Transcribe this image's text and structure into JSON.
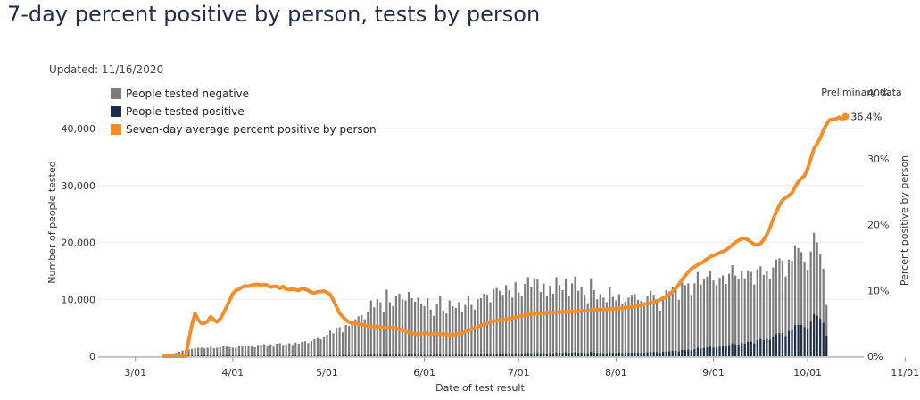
{
  "page": {
    "title": "7-day percent positive by person, tests by person",
    "updated": "Updated: 11/16/2020"
  },
  "colors": {
    "negative": "#7b7b7b",
    "positive": "#1f2d4b",
    "line": "#f28e2b",
    "preliminary": "#d6d6d6"
  },
  "chart_data": {
    "type": "bar",
    "title": "",
    "xlabel": "Date of test result",
    "ylabel": "Number of people tested",
    "y2label": "Percent positive by person",
    "x_ticks": [
      "3/01",
      "4/01",
      "5/01",
      "6/01",
      "7/01",
      "8/01",
      "9/01",
      "10/01",
      "11/01"
    ],
    "y_ticks": [
      "0",
      "10,000",
      "20,000",
      "30,000",
      "40,000"
    ],
    "y2_ticks": [
      "0%",
      "10%",
      "20%",
      "30%",
      "40%"
    ],
    "ylim": [
      0,
      45000
    ],
    "y2lim": [
      0,
      40
    ],
    "legend_placement": "top-left",
    "grid": "horizontal",
    "preliminary_label": "Preliminary data",
    "preliminary_start": "11/01",
    "last_value_label": "36.4%",
    "legend": [
      "People tested negative",
      "People tested positive",
      "Seven-day average percent positive by person"
    ],
    "date_start": "2020-03-01",
    "total_tested": [
      0,
      0,
      0,
      0,
      0,
      0,
      0,
      0,
      0,
      50,
      150,
      250,
      400,
      600,
      800,
      1000,
      1100,
      1200,
      1300,
      1400,
      1500,
      1500,
      1400,
      1500,
      1600,
      1400,
      1500,
      1600,
      1800,
      1700,
      1600,
      1500,
      1500,
      1900,
      1800,
      1700,
      1900,
      1700,
      1600,
      2000,
      2000,
      2100,
      1900,
      2100,
      1700,
      2200,
      2300,
      2000,
      2100,
      2300,
      2000,
      2400,
      2200,
      2500,
      2600,
      2300,
      2700,
      3000,
      3200,
      3000,
      3400,
      3800,
      4500,
      4000,
      5000,
      5100,
      4200,
      5500,
      5300,
      6000,
      6500,
      7000,
      7200,
      6500,
      7800,
      9800,
      8600,
      10000,
      9500,
      7800,
      11700,
      9500,
      8800,
      10500,
      11000,
      10000,
      9800,
      11300,
      10200,
      9600,
      10300,
      9200,
      8800,
      10200,
      8200,
      7100,
      9200,
      10500,
      8000,
      7500,
      9800,
      8800,
      8500,
      9500,
      7800,
      9000,
      10500,
      9000,
      8200,
      10000,
      10200,
      11000,
      10800,
      9500,
      11800,
      12000,
      11500,
      10800,
      12500,
      11600,
      10300,
      13000,
      11200,
      10600,
      12700,
      13900,
      12200,
      13700,
      13600,
      11300,
      12800,
      10500,
      12400,
      11000,
      13900,
      12500,
      11600,
      13500,
      10600,
      12800,
      14000,
      11500,
      12200,
      10800,
      9300,
      13700,
      11600,
      10000,
      10900,
      10300,
      9500,
      12200,
      10400,
      9800,
      10900,
      9100,
      9600,
      10300,
      10800,
      10900,
      9900,
      9700,
      8800,
      10500,
      11500,
      10800,
      9500,
      8000,
      10600,
      11600,
      11400,
      12200,
      12100,
      9900,
      13000,
      12500,
      12800,
      10800,
      12800,
      14800,
      12600,
      13500,
      14000,
      15000,
      13300,
      12500,
      13800,
      14200,
      12700,
      14500,
      16000,
      14200,
      13600,
      14900,
      13700,
      15100,
      14800,
      12600,
      15300,
      15800,
      14300,
      15000,
      13500,
      15600,
      17000,
      17200,
      16800,
      14000,
      17000,
      16800,
      19500,
      19000,
      18300,
      16500,
      15200,
      18400,
      21700,
      20000,
      17900,
      15400,
      9000
    ],
    "positive_tested": [
      0,
      0,
      0,
      0,
      0,
      0,
      0,
      0,
      0,
      5,
      10,
      20,
      30,
      40,
      50,
      60,
      70,
      80,
      90,
      100,
      110,
      120,
      120,
      130,
      130,
      120,
      130,
      140,
      150,
      140,
      130,
      120,
      120,
      140,
      130,
      120,
      130,
      110,
      100,
      120,
      110,
      110,
      100,
      100,
      80,
      100,
      100,
      90,
      90,
      100,
      80,
      100,
      90,
      100,
      100,
      90,
      100,
      110,
      120,
      110,
      120,
      140,
      160,
      140,
      170,
      170,
      140,
      180,
      170,
      190,
      200,
      220,
      220,
      190,
      230,
      280,
      240,
      280,
      260,
      210,
      310,
      250,
      230,
      270,
      280,
      250,
      250,
      290,
      260,
      240,
      260,
      230,
      220,
      260,
      210,
      180,
      240,
      280,
      210,
      200,
      260,
      240,
      240,
      270,
      220,
      260,
      310,
      270,
      250,
      310,
      330,
      360,
      360,
      320,
      400,
      420,
      410,
      390,
      460,
      440,
      390,
      500,
      440,
      420,
      510,
      570,
      510,
      580,
      580,
      490,
      560,
      470,
      560,
      510,
      650,
      600,
      560,
      660,
      530,
      640,
      710,
      590,
      630,
      570,
      490,
      730,
      620,
      540,
      590,
      560,
      520,
      670,
      580,
      550,
      620,
      520,
      550,
      600,
      640,
      660,
      610,
      610,
      560,
      690,
      770,
      740,
      660,
      570,
      770,
      860,
      870,
      960,
      980,
      820,
      1110,
      1100,
      1160,
      1010,
      1230,
      1470,
      1290,
      1420,
      1520,
      1680,
      1540,
      1480,
      1690,
      1800,
      1660,
      1970,
      2250,
      2070,
      2040,
      2310,
      2210,
      2500,
      2550,
      2240,
      2820,
      3020,
      2840,
      3080,
      2870,
      3420,
      3880,
      4060,
      4100,
      3530,
      4450,
      4560,
      5480,
      5510,
      5490,
      5130,
      4880,
      6070,
      7400,
      7100,
      6570,
      5850,
      3600
    ],
    "pct_positive_7day": [
      null,
      null,
      null,
      null,
      null,
      null,
      null,
      null,
      null,
      0,
      0,
      0,
      0,
      0,
      0,
      0,
      0,
      2.5,
      4.8,
      6.5,
      5.5,
      5.0,
      5.0,
      5.3,
      6.0,
      5.5,
      5.2,
      5.7,
      6.5,
      7.5,
      8.5,
      9.5,
      10.0,
      10.2,
      10.5,
      10.7,
      10.6,
      10.8,
      10.9,
      10.9,
      10.8,
      10.9,
      10.8,
      10.5,
      10.6,
      10.6,
      10.3,
      10.6,
      10.2,
      10.1,
      10.2,
      10.1,
      10.0,
      10.3,
      10.2,
      10.0,
      9.7,
      9.6,
      9.8,
      9.8,
      9.9,
      9.7,
      9.4,
      8.5,
      7.5,
      6.5,
      6.0,
      5.5,
      5.2,
      5.0,
      5.0,
      4.9,
      4.8,
      4.7,
      4.6,
      4.6,
      4.5,
      4.5,
      4.4,
      4.4,
      4.3,
      4.3,
      4.4,
      4.2,
      4.1,
      4.0,
      3.8,
      3.6,
      3.5,
      3.4,
      3.3,
      3.4,
      3.5,
      3.4,
      3.3,
      3.4,
      3.4,
      3.3,
      3.4,
      3.3,
      3.3,
      3.3,
      3.3,
      3.4,
      3.5,
      3.7,
      3.9,
      4.1,
      4.3,
      4.5,
      4.7,
      4.8,
      5.0,
      5.2,
      5.3,
      5.4,
      5.5,
      5.6,
      5.6,
      5.7,
      5.8,
      5.9,
      6.0,
      6.1,
      6.2,
      6.3,
      6.4,
      6.4,
      6.5,
      6.5,
      6.5,
      6.6,
      6.6,
      6.6,
      6.6,
      6.7,
      6.7,
      6.7,
      6.8,
      6.8,
      6.8,
      6.8,
      6.9,
      6.9,
      6.9,
      7.0,
      7.0,
      7.0,
      7.1,
      7.1,
      7.1,
      7.2,
      7.2,
      7.2,
      7.3,
      7.3,
      7.4,
      7.4,
      7.5,
      7.6,
      7.7,
      7.8,
      7.9,
      8.0,
      8.1,
      8.2,
      8.4,
      8.6,
      8.8,
      9.1,
      9.4,
      9.8,
      10.3,
      10.9,
      11.6,
      12.2,
      12.8,
      13.3,
      13.6,
      13.9,
      14.1,
      14.4,
      14.8,
      15.1,
      15.3,
      15.5,
      15.7,
      15.9,
      16.1,
      16.5,
      16.9,
      17.3,
      17.6,
      17.8,
      17.9,
      17.7,
      17.3,
      17.0,
      16.9,
      17.1,
      17.7,
      18.5,
      19.5,
      20.8,
      21.9,
      22.9,
      23.7,
      24.1,
      24.4,
      24.8,
      25.7,
      26.5,
      27.0,
      27.4,
      28.5,
      30.0,
      31.5,
      32.3,
      33.1,
      34.3,
      35.2,
      35.9,
      36.0,
      36.0,
      36.3,
      36.0,
      36.4
    ]
  }
}
